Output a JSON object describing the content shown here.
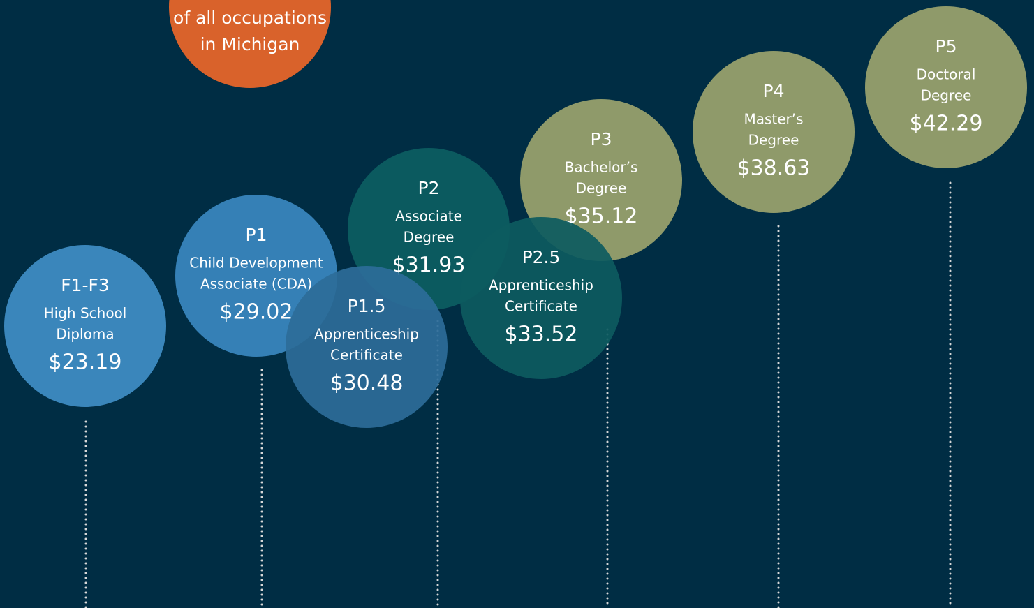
{
  "top_note": {
    "lines": [
      "of all occupations",
      "in Michigan"
    ]
  },
  "nodes": [
    {
      "level": "F1-F3",
      "credential": [
        "High School",
        "Diploma"
      ],
      "wage": "$23.19"
    },
    {
      "level": "P1",
      "credential": [
        "Child Development",
        "Associate (CDA)"
      ],
      "wage": "$29.02"
    },
    {
      "level": "P2",
      "credential": [
        "Associate",
        "Degree"
      ],
      "wage": "$31.93"
    },
    {
      "level": "P1.5",
      "credential": [
        "Apprenticeship",
        "Certificate"
      ],
      "wage": "$30.48"
    },
    {
      "level": "P3",
      "credential": [
        "Bachelor’s",
        "Degree"
      ],
      "wage": "$35.12"
    },
    {
      "level": "P2.5",
      "credential": [
        "Apprenticeship",
        "Certificate"
      ],
      "wage": "$33.52"
    },
    {
      "level": "P4",
      "credential": [
        "Master’s",
        "Degree"
      ],
      "wage": "$38.63"
    },
    {
      "level": "P5",
      "credential": [
        "Doctoral",
        "Degree"
      ],
      "wage": "$42.29"
    }
  ]
}
